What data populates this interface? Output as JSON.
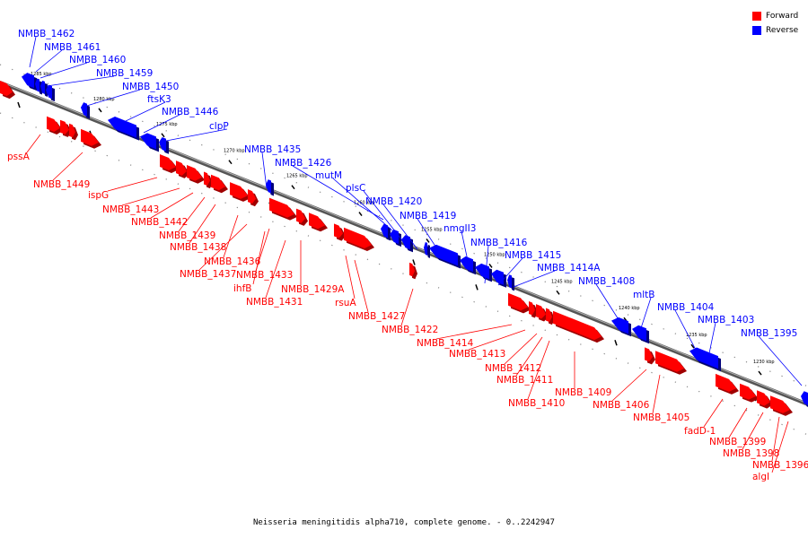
{
  "legend": {
    "forward_label": "Forward",
    "reverse_label": "Reverse",
    "forward_color": "#ff0000",
    "reverse_color": "#0000ff"
  },
  "footer": "Neisseria meningitidis alpha710, complete genome. - 0..2242947",
  "scale_labels": [
    "1285 kbp",
    "1280 kbp",
    "1275 kbp",
    "1270 kbp",
    "1265 kbp",
    "1260 kbp",
    "1255 kbp",
    "1250 kbp",
    "1245 kbp",
    "1240 kbp",
    "1235 kbp",
    "1230 kbp"
  ],
  "reverse_genes": [
    "NMBB_1462",
    "NMBB_1461",
    "NMBB_1460",
    "NMBB_1459",
    "NMBB_1450",
    "ftsK3",
    "NMBB_1446",
    "clpP",
    "NMBB_1435",
    "NMBB_1426",
    "mutM",
    "plsC",
    "NMBB_1420",
    "NMBB_1419",
    "nmgII3",
    "NMBB_1416",
    "NMBB_1415",
    "NMBB_1414A",
    "NMBB_1408",
    "mltB",
    "NMBB_1404",
    "NMBB_1403",
    "NMBB_1395"
  ],
  "forward_genes": [
    "pssA",
    "NMBB_1449",
    "ispG",
    "NMBB_1443",
    "NMBB_1442",
    "NMBB_1439",
    "NMBB_1438",
    "NMBB_1436",
    "NMBB_1437",
    "NMBB_1433",
    "ihfB",
    "NMBB_1429A",
    "NMBB_1431",
    "rsuA",
    "NMBB_1427",
    "NMBB_1422",
    "NMBB_1414",
    "NMBB_1413",
    "NMBB_1412",
    "NMBB_1411",
    "NMBB_1410",
    "NMBB_1409",
    "NMBB_1406",
    "NMBB_1405",
    "fadD-1",
    "NMBB_1399",
    "NMBB_1398",
    "NMBB_1396",
    "algI"
  ]
}
